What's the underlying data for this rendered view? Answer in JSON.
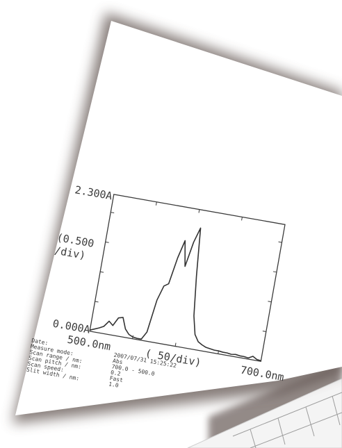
{
  "chart_data": {
    "type": "line",
    "x": [
      500,
      505,
      510,
      515,
      520,
      525,
      530,
      535,
      540,
      545,
      550,
      555,
      560,
      565,
      570,
      575,
      580,
      585,
      590,
      595,
      600,
      605,
      610,
      615,
      620,
      625,
      630,
      635,
      640,
      645,
      650,
      655,
      660,
      665,
      670,
      675,
      680,
      685,
      690,
      695,
      700
    ],
    "series": [
      {
        "values": [
          0.02,
          0.05,
          0.08,
          0.12,
          0.22,
          0.16,
          0.3,
          0.32,
          0.14,
          0.06,
          0.03,
          0.02,
          0.02,
          0.15,
          0.7,
          0.95,
          1.0,
          1.45,
          1.75,
          1.33,
          1.75,
          2.0,
          1.2,
          0.55,
          0.25,
          0.14,
          0.1,
          0.07,
          0.06,
          0.05,
          0.05,
          0.04,
          0.04,
          0.03,
          0.04,
          0.03,
          0.03,
          0.02,
          0.06,
          0.02,
          0.01
        ]
      }
    ],
    "y_top_label": "2.300A",
    "y_bottom_label": "0.000A",
    "y_scale_label": "(0.500\n/div)",
    "x_start_label": "500.0nm",
    "x_end_label": "700.0nm",
    "x_scale_label": "( 50/div)",
    "xlim": [
      500,
      700
    ],
    "ylim": [
      0,
      2.3
    ]
  },
  "footer": {
    "labels": [
      "Date:",
      "Measure mode:",
      "Scan range / nm:",
      "Scan pitch / nm:",
      "Scan speed:",
      "Slit width / nm:"
    ],
    "values": [
      "2007/07/31 15:25:22",
      "Abs",
      "700.0 - 500.0",
      "0.2",
      "Fast",
      "1.0"
    ]
  },
  "colors": {
    "paper": "#ffffff",
    "ink": "#3a3a3a",
    "shadow": "#7a6d68"
  }
}
